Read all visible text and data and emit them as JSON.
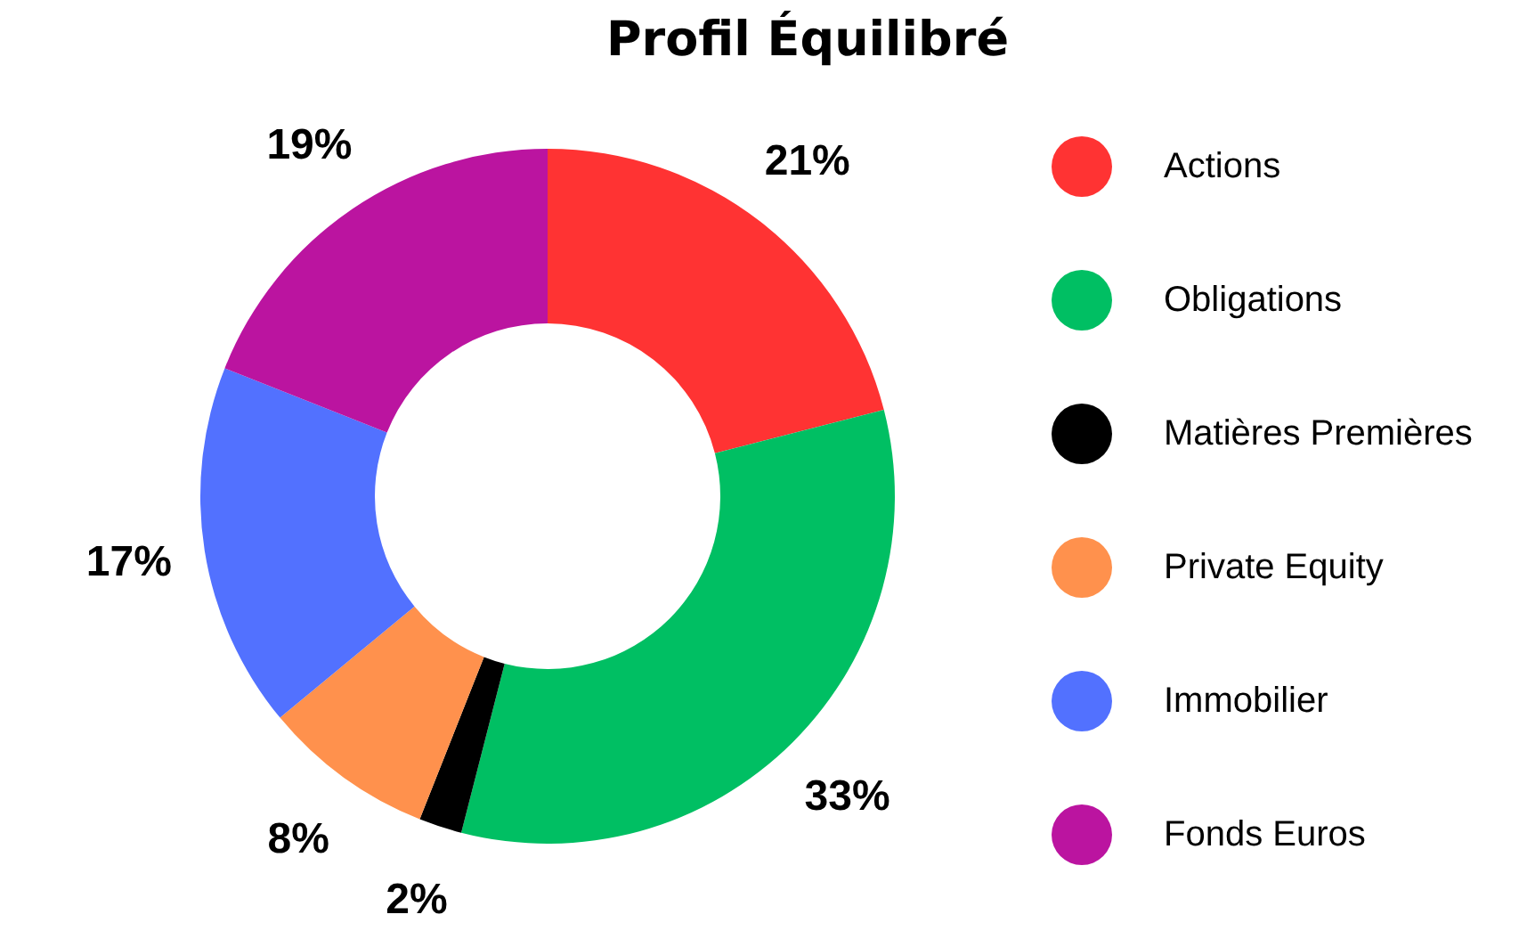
{
  "chart_data": {
    "type": "donut",
    "title": "Profil Équilibré",
    "categories": [
      "Actions",
      "Obligations",
      "Matières Premières",
      "Private Equity",
      "Immobilier",
      "Fonds Euros"
    ],
    "values": [
      21,
      33,
      2,
      8,
      17,
      19
    ],
    "colors": [
      "#ff3333",
      "#00bf63",
      "#000000",
      "#ff914d",
      "#5271ff",
      "#bb14a0"
    ],
    "value_labels": [
      "21%",
      "33%",
      "2%",
      "8%",
      "17%",
      "19%"
    ],
    "legend": "right"
  }
}
